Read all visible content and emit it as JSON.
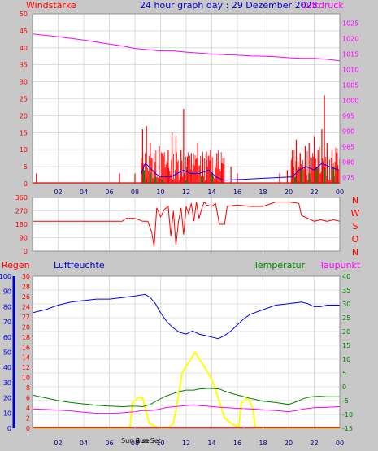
{
  "header": {
    "title": "24 hour graph day : 29 Dezember 2025",
    "wind_label": "Windstärke",
    "pressure_label": "Luftdruck",
    "rain_label": "Regen",
    "humidity_label": "Luftfeuchte",
    "temperature_label": "Temperatur",
    "dewpoint_label": "Taupunkt",
    "sunrise_label": "Sun Rise",
    "sunset_label": "Sun Set"
  },
  "colors": {
    "background": "#c8c8c8",
    "plot_bg": "#ffffff",
    "grid": "#c8c8c8",
    "wind": "#ff0000",
    "wind_avg": "#0000ff",
    "wind_green": "#008800",
    "pressure": "#ff00ff",
    "direction": "#ff0000",
    "humidity": "#0000ff",
    "temperature": "#008000",
    "dewpoint": "#ff00ff",
    "solar": "#ffff00",
    "rain": "#ff0000",
    "rain_axis": "#0000cc",
    "text_blue": "#0000cc"
  },
  "chart_data": [
    {
      "type": "line",
      "name": "wind-pressure",
      "xlabels": [
        "02",
        "04",
        "06",
        "08",
        "10",
        "12",
        "14",
        "16",
        "18",
        "20",
        "22",
        "00"
      ],
      "x_hours": [
        0,
        24
      ],
      "y_left": {
        "label": "Windstärke",
        "ticks": [
          0,
          5,
          10,
          15,
          20,
          25,
          30,
          35,
          40,
          45,
          50
        ],
        "range": [
          0,
          50
        ]
      },
      "y_right": {
        "label": "Luftdruck",
        "ticks": [
          975,
          980,
          985,
          990,
          995,
          1000,
          1005,
          1010,
          1015,
          1020,
          1025
        ],
        "range": [
          973,
          1028
        ]
      },
      "pressure": [
        [
          0,
          1021.5
        ],
        [
          2,
          1020.6
        ],
        [
          4,
          1019.5
        ],
        [
          6,
          1018.2
        ],
        [
          7,
          1017.6
        ],
        [
          8,
          1016.8
        ],
        [
          9,
          1016.4
        ],
        [
          10,
          1016.0
        ],
        [
          11,
          1016.0
        ],
        [
          12,
          1015.6
        ],
        [
          13,
          1015.3
        ],
        [
          14,
          1015.0
        ],
        [
          15,
          1014.8
        ],
        [
          16,
          1014.6
        ],
        [
          17,
          1014.4
        ],
        [
          18,
          1014.3
        ],
        [
          19,
          1014.1
        ],
        [
          20,
          1013.8
        ],
        [
          21,
          1013.6
        ],
        [
          22,
          1013.6
        ],
        [
          23,
          1013.3
        ],
        [
          24,
          1012.8
        ]
      ],
      "wind_gust_peaks": [
        [
          0.3,
          3
        ],
        [
          6.8,
          3
        ],
        [
          8,
          3
        ],
        [
          8.6,
          16
        ],
        [
          8.9,
          17
        ],
        [
          9.2,
          12
        ],
        [
          9.5,
          9
        ],
        [
          9.9,
          11
        ],
        [
          10.2,
          9
        ],
        [
          10.6,
          10
        ],
        [
          10.9,
          15
        ],
        [
          11.2,
          14
        ],
        [
          11.6,
          10
        ],
        [
          11.8,
          22
        ],
        [
          12.1,
          8
        ],
        [
          12.4,
          9
        ],
        [
          12.9,
          12
        ],
        [
          13.3,
          8
        ],
        [
          13.6,
          7
        ],
        [
          13.9,
          10
        ],
        [
          14.4,
          9
        ],
        [
          14.8,
          6
        ],
        [
          15.5,
          5
        ],
        [
          16.0,
          3
        ],
        [
          19.3,
          3
        ],
        [
          19.9,
          4
        ],
        [
          20.3,
          10
        ],
        [
          20.6,
          13
        ],
        [
          20.9,
          9
        ],
        [
          21.3,
          11
        ],
        [
          21.6,
          12
        ],
        [
          22.0,
          14
        ],
        [
          22.3,
          10
        ],
        [
          22.6,
          16
        ],
        [
          22.8,
          26
        ],
        [
          23.0,
          12
        ],
        [
          23.4,
          10
        ],
        [
          23.8,
          9
        ]
      ],
      "wind_avg": [
        [
          8.5,
          3
        ],
        [
          8.8,
          6
        ],
        [
          9.1,
          5
        ],
        [
          9.6,
          3
        ],
        [
          10.0,
          2
        ],
        [
          10.8,
          2
        ],
        [
          11.8,
          4
        ],
        [
          12.3,
          3
        ],
        [
          13.0,
          3
        ],
        [
          13.8,
          4
        ],
        [
          14.3,
          2
        ],
        [
          15.0,
          1
        ],
        [
          20.3,
          2
        ],
        [
          20.8,
          4
        ],
        [
          21.4,
          5
        ],
        [
          22.0,
          4
        ],
        [
          22.6,
          6
        ],
        [
          23.2,
          5
        ],
        [
          23.9,
          4
        ]
      ],
      "wind_green": [
        [
          8.7,
          4
        ],
        [
          9.2,
          3
        ],
        [
          9.6,
          2
        ],
        [
          10.1,
          1
        ],
        [
          12.0,
          1
        ],
        [
          13.2,
          2
        ],
        [
          14.0,
          3
        ],
        [
          20.5,
          2
        ],
        [
          21.0,
          4
        ],
        [
          21.6,
          3
        ],
        [
          22.2,
          5
        ],
        [
          22.8,
          4
        ],
        [
          23.5,
          5
        ]
      ]
    },
    {
      "type": "line",
      "name": "wind-direction",
      "y_left": {
        "ticks": [
          0,
          90,
          180,
          270,
          360
        ],
        "range": [
          0,
          360
        ]
      },
      "y_right_labels": [
        "N",
        "W",
        "S",
        "O",
        "N"
      ],
      "direction": [
        [
          0,
          200
        ],
        [
          7.0,
          200
        ],
        [
          7.3,
          220
        ],
        [
          8.0,
          220
        ],
        [
          8.6,
          200
        ],
        [
          9.0,
          200
        ],
        [
          9.3,
          130
        ],
        [
          9.5,
          30
        ],
        [
          9.7,
          290
        ],
        [
          10.0,
          230
        ],
        [
          10.3,
          280
        ],
        [
          10.6,
          300
        ],
        [
          10.8,
          100
        ],
        [
          11.0,
          270
        ],
        [
          11.2,
          40
        ],
        [
          11.4,
          200
        ],
        [
          11.6,
          290
        ],
        [
          11.8,
          110
        ],
        [
          12.0,
          300
        ],
        [
          12.2,
          250
        ],
        [
          12.4,
          320
        ],
        [
          12.6,
          200
        ],
        [
          12.8,
          330
        ],
        [
          13.0,
          220
        ],
        [
          13.2,
          280
        ],
        [
          13.4,
          330
        ],
        [
          13.6,
          310
        ],
        [
          14.0,
          300
        ],
        [
          14.3,
          320
        ],
        [
          14.6,
          180
        ],
        [
          15.0,
          180
        ],
        [
          15.2,
          300
        ],
        [
          16.0,
          310
        ],
        [
          17.0,
          300
        ],
        [
          18.0,
          300
        ],
        [
          19.0,
          330
        ],
        [
          20.0,
          330
        ],
        [
          20.8,
          320
        ],
        [
          21.0,
          240
        ],
        [
          21.5,
          220
        ],
        [
          22.0,
          200
        ],
        [
          22.5,
          210
        ],
        [
          23.0,
          200
        ],
        [
          23.5,
          210
        ],
        [
          24.0,
          200
        ]
      ]
    },
    {
      "type": "line",
      "name": "humidity-temperature",
      "y_rain": {
        "label": "Regen",
        "ticks": [
          0,
          2,
          4,
          6,
          8,
          10,
          12,
          14,
          16,
          18,
          20,
          22,
          24,
          26,
          28,
          30
        ],
        "range": [
          0,
          30
        ]
      },
      "y_humidity": {
        "label": "Luftfeuchte",
        "ticks": [
          0,
          10,
          20,
          30,
          40,
          50,
          60,
          70,
          80,
          90,
          100
        ],
        "range": [
          0,
          100
        ]
      },
      "y_temperature": {
        "label": "Temperatur",
        "ticks": [
          -15,
          -10,
          -5,
          0,
          5,
          10,
          15,
          20,
          25,
          30,
          35,
          40
        ],
        "range": [
          -15,
          40
        ]
      },
      "humidity": [
        [
          0,
          76
        ],
        [
          1,
          78
        ],
        [
          2,
          81
        ],
        [
          3,
          83
        ],
        [
          4,
          84
        ],
        [
          5,
          85
        ],
        [
          6,
          85
        ],
        [
          7,
          86
        ],
        [
          8,
          87
        ],
        [
          8.8,
          88
        ],
        [
          9.2,
          86
        ],
        [
          9.6,
          82
        ],
        [
          10.0,
          76
        ],
        [
          10.5,
          70
        ],
        [
          11.0,
          66
        ],
        [
          11.5,
          63
        ],
        [
          12.0,
          62
        ],
        [
          12.5,
          64
        ],
        [
          13.0,
          62
        ],
        [
          13.5,
          61
        ],
        [
          14.0,
          60
        ],
        [
          14.5,
          59
        ],
        [
          15.0,
          61
        ],
        [
          15.5,
          64
        ],
        [
          16.0,
          68
        ],
        [
          16.5,
          72
        ],
        [
          17.0,
          75
        ],
        [
          18.0,
          78
        ],
        [
          19.0,
          81
        ],
        [
          20.0,
          82
        ],
        [
          21.0,
          83
        ],
        [
          21.5,
          82
        ],
        [
          22.0,
          80
        ],
        [
          22.5,
          80
        ],
        [
          23.0,
          81
        ],
        [
          24.0,
          81
        ]
      ],
      "temperature": [
        [
          0,
          -3
        ],
        [
          1,
          -4
        ],
        [
          2,
          -5
        ],
        [
          3,
          -5.7
        ],
        [
          4,
          -6.2
        ],
        [
          5,
          -6.7
        ],
        [
          6,
          -7
        ],
        [
          7,
          -7.2
        ],
        [
          8,
          -7
        ],
        [
          8.6,
          -7.2
        ],
        [
          9.2,
          -6.4
        ],
        [
          9.8,
          -4.8
        ],
        [
          10.4,
          -3.4
        ],
        [
          11.0,
          -2.4
        ],
        [
          11.6,
          -1.6
        ],
        [
          12.0,
          -1.2
        ],
        [
          12.6,
          -1.2
        ],
        [
          13.0,
          -0.8
        ],
        [
          13.6,
          -0.6
        ],
        [
          14.0,
          -0.6
        ],
        [
          14.6,
          -0.8
        ],
        [
          15.0,
          -1.6
        ],
        [
          15.6,
          -2.5
        ],
        [
          16.2,
          -3.2
        ],
        [
          17.0,
          -4.2
        ],
        [
          18.0,
          -5.2
        ],
        [
          19.0,
          -5.7
        ],
        [
          20.0,
          -6.4
        ],
        [
          20.6,
          -5.4
        ],
        [
          21.2,
          -4.2
        ],
        [
          21.8,
          -3.6
        ],
        [
          22.4,
          -3.4
        ],
        [
          23.0,
          -3.6
        ],
        [
          24.0,
          -3.6
        ]
      ],
      "dewpoint": [
        [
          0,
          -8
        ],
        [
          1,
          -8.2
        ],
        [
          2,
          -8.4
        ],
        [
          3,
          -8.7
        ],
        [
          4,
          -9.2
        ],
        [
          5,
          -9.6
        ],
        [
          6,
          -9.6
        ],
        [
          7,
          -9.4
        ],
        [
          8,
          -9.0
        ],
        [
          8.6,
          -8.6
        ],
        [
          9.2,
          -8.6
        ],
        [
          9.8,
          -8.2
        ],
        [
          10.4,
          -7.6
        ],
        [
          11.0,
          -7.2
        ],
        [
          11.6,
          -7.0
        ],
        [
          12.0,
          -6.8
        ],
        [
          12.6,
          -6.5
        ],
        [
          13.0,
          -6.8
        ],
        [
          13.6,
          -7.0
        ],
        [
          14.0,
          -7.2
        ],
        [
          14.6,
          -7.4
        ],
        [
          15.2,
          -7.6
        ],
        [
          16.0,
          -7.8
        ],
        [
          17.0,
          -8.0
        ],
        [
          18.0,
          -8.3
        ],
        [
          19.0,
          -8.6
        ],
        [
          20.0,
          -9.0
        ],
        [
          20.6,
          -8.6
        ],
        [
          21.2,
          -8.0
        ],
        [
          22.0,
          -7.6
        ],
        [
          23.0,
          -7.4
        ],
        [
          24.0,
          -7.2
        ]
      ],
      "solar": [
        [
          0,
          0
        ],
        [
          7.6,
          0
        ],
        [
          7.8,
          5
        ],
        [
          8.2,
          6
        ],
        [
          8.6,
          6
        ],
        [
          8.8,
          4
        ],
        [
          9.1,
          1
        ],
        [
          9.5,
          0.5
        ],
        [
          10.0,
          0
        ],
        [
          10.6,
          0
        ],
        [
          11.0,
          1
        ],
        [
          11.3,
          5
        ],
        [
          11.7,
          11
        ],
        [
          12.2,
          13
        ],
        [
          12.7,
          15
        ],
        [
          13.2,
          13
        ],
        [
          13.7,
          11
        ],
        [
          14.1,
          9
        ],
        [
          14.5,
          6
        ],
        [
          15.0,
          2
        ],
        [
          15.5,
          1
        ],
        [
          15.9,
          0.5
        ],
        [
          16.1,
          0
        ],
        [
          16.3,
          5
        ],
        [
          16.8,
          6
        ],
        [
          17.2,
          4
        ],
        [
          17.4,
          0
        ],
        [
          24,
          0
        ]
      ],
      "rain_total": 0,
      "sunrise_hour": 8.0,
      "sunset_hour": 16.5
    }
  ]
}
